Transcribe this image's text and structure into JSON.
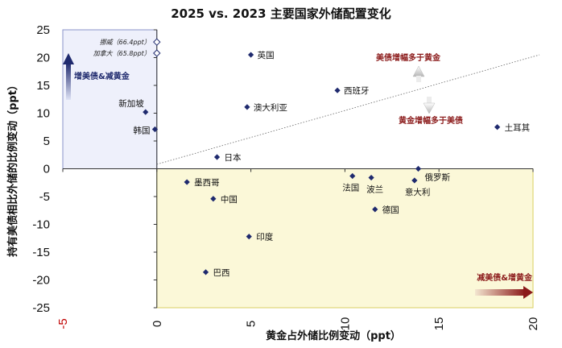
{
  "chart_data": {
    "type": "scatter",
    "title": "2025 vs. 2023 主要国家外储配置变化",
    "xlabel": "黄金占外储比例变动（ppt）",
    "ylabel": "持有美债相比外储的比例变动（ppt）",
    "xlim": [
      -5,
      20
    ],
    "ylim": [
      -25,
      25
    ],
    "x_ticks": [
      -5,
      0,
      5,
      10,
      15,
      20
    ],
    "y_ticks": [
      25,
      20,
      15,
      10,
      5,
      0,
      -5,
      -10,
      -15,
      -20,
      -25
    ],
    "grid": false,
    "points": [
      {
        "label": "英国",
        "x": 5.0,
        "y": 20.5
      },
      {
        "label": "西班牙",
        "x": 9.6,
        "y": 14.1
      },
      {
        "label": "澳大利亚",
        "x": 4.8,
        "y": 11.1
      },
      {
        "label": "土耳其",
        "x": 18.1,
        "y": 7.5
      },
      {
        "label": "新加坡",
        "x": -0.6,
        "y": 10.2
      },
      {
        "label": "韩国",
        "x": -0.1,
        "y": 7.1
      },
      {
        "label": "日本",
        "x": 3.2,
        "y": 2.1
      },
      {
        "label": "墨西哥",
        "x": 1.6,
        "y": -2.4
      },
      {
        "label": "中国",
        "x": 3.0,
        "y": -5.4
      },
      {
        "label": "法国",
        "x": 10.4,
        "y": -1.3
      },
      {
        "label": "波兰",
        "x": 11.4,
        "y": -1.6
      },
      {
        "label": "俄罗斯",
        "x": 13.9,
        "y": 0.0
      },
      {
        "label": "意大利",
        "x": 13.7,
        "y": -2.1
      },
      {
        "label": "德国",
        "x": 11.6,
        "y": -7.3
      },
      {
        "label": "印度",
        "x": 4.9,
        "y": -12.2
      },
      {
        "label": "巴西",
        "x": 2.6,
        "y": -18.6
      }
    ],
    "offscale_points": [
      {
        "label": "挪威（66.4ppt）",
        "y": 66.4
      },
      {
        "label": "加拿大（65.8ppt）",
        "y": 65.8
      }
    ],
    "annotations": {
      "upper_left": "增美债&减黄金",
      "lower_right": "减美债&增黄金",
      "above_line": "美债增幅多于黄金",
      "below_line": "黄金增幅多于美债"
    },
    "colors": {
      "marker": "#1f2a6e",
      "blue_zone": "#eef0fb",
      "yellow_zone": "#fbf8d8",
      "negative_tick": "#c00000",
      "legend_red": "#8b1a1a"
    }
  }
}
